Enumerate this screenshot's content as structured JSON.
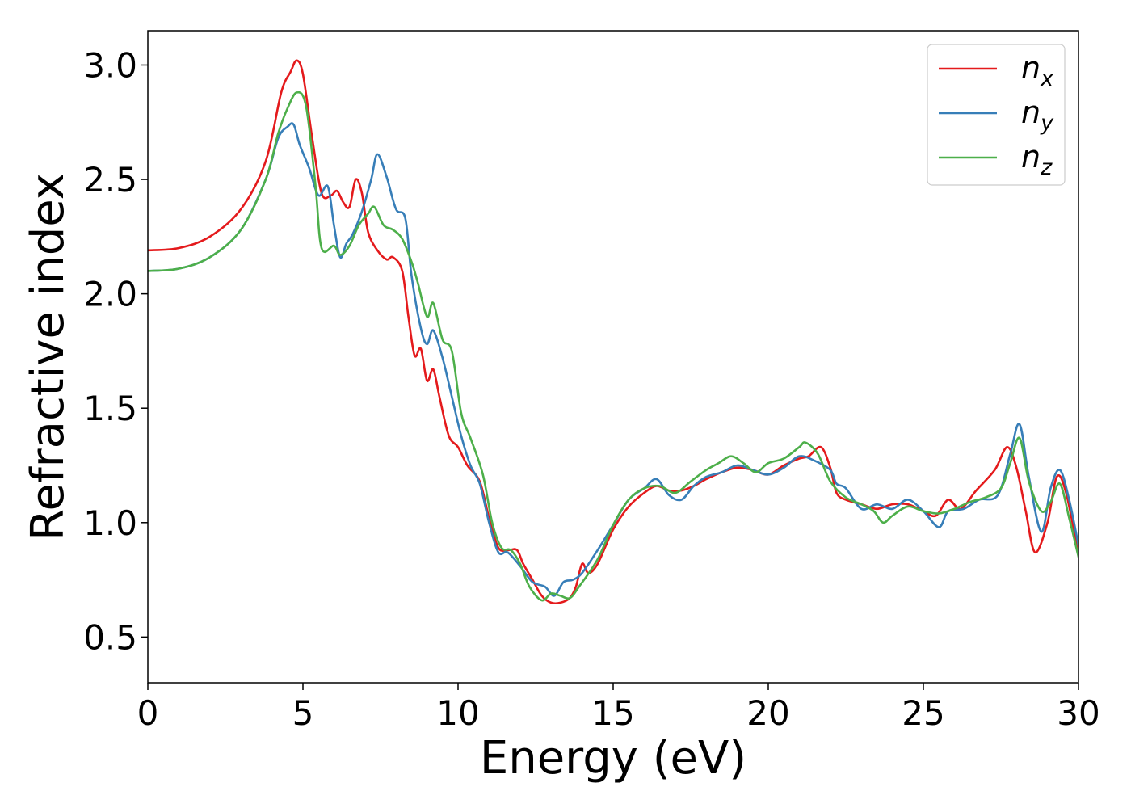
{
  "chart_data": {
    "type": "line",
    "title": "",
    "xlabel": "Energy (eV)",
    "ylabel": "Refractive index",
    "xlim": [
      0,
      30
    ],
    "ylim": [
      0.3,
      3.15
    ],
    "xticks": [
      0,
      5,
      10,
      15,
      20,
      25,
      30
    ],
    "yticks": [
      0.5,
      1.0,
      1.5,
      2.0,
      2.5,
      3.0
    ],
    "xtick_labels": [
      "0",
      "5",
      "10",
      "15",
      "20",
      "25",
      "30"
    ],
    "ytick_labels": [
      "0.5",
      "1.0",
      "1.5",
      "2.0",
      "2.5",
      "3.0"
    ],
    "grid": false,
    "legend_position": "top-right",
    "series": [
      {
        "name": "n",
        "subscript": "x",
        "color": "#e41a1c",
        "points": [
          [
            0,
            2.19
          ],
          [
            1,
            2.2
          ],
          [
            2,
            2.25
          ],
          [
            3,
            2.37
          ],
          [
            3.8,
            2.58
          ],
          [
            4.3,
            2.88
          ],
          [
            4.6,
            2.97
          ],
          [
            4.8,
            3.02
          ],
          [
            5.0,
            2.96
          ],
          [
            5.3,
            2.68
          ],
          [
            5.6,
            2.44
          ],
          [
            5.9,
            2.43
          ],
          [
            6.1,
            2.45
          ],
          [
            6.3,
            2.4
          ],
          [
            6.5,
            2.38
          ],
          [
            6.7,
            2.5
          ],
          [
            6.9,
            2.44
          ],
          [
            7.1,
            2.27
          ],
          [
            7.4,
            2.19
          ],
          [
            7.7,
            2.15
          ],
          [
            7.9,
            2.16
          ],
          [
            8.2,
            2.1
          ],
          [
            8.4,
            1.9
          ],
          [
            8.6,
            1.73
          ],
          [
            8.8,
            1.76
          ],
          [
            9.0,
            1.62
          ],
          [
            9.2,
            1.67
          ],
          [
            9.4,
            1.55
          ],
          [
            9.7,
            1.38
          ],
          [
            10.0,
            1.33
          ],
          [
            10.3,
            1.25
          ],
          [
            10.7,
            1.18
          ],
          [
            11.0,
            1.02
          ],
          [
            11.3,
            0.89
          ],
          [
            11.6,
            0.88
          ],
          [
            11.9,
            0.88
          ],
          [
            12.1,
            0.82
          ],
          [
            12.4,
            0.75
          ],
          [
            12.7,
            0.68
          ],
          [
            13.0,
            0.65
          ],
          [
            13.3,
            0.65
          ],
          [
            13.6,
            0.67
          ],
          [
            13.8,
            0.72
          ],
          [
            14.0,
            0.82
          ],
          [
            14.2,
            0.78
          ],
          [
            14.5,
            0.82
          ],
          [
            15.0,
            0.97
          ],
          [
            15.5,
            1.07
          ],
          [
            16.0,
            1.13
          ],
          [
            16.4,
            1.16
          ],
          [
            16.8,
            1.14
          ],
          [
            17.2,
            1.14
          ],
          [
            17.6,
            1.16
          ],
          [
            18.0,
            1.19
          ],
          [
            18.5,
            1.22
          ],
          [
            19.0,
            1.24
          ],
          [
            19.5,
            1.23
          ],
          [
            20.0,
            1.21
          ],
          [
            20.5,
            1.25
          ],
          [
            21.0,
            1.28
          ],
          [
            21.3,
            1.29
          ],
          [
            21.7,
            1.33
          ],
          [
            22.0,
            1.24
          ],
          [
            22.2,
            1.13
          ],
          [
            22.5,
            1.1
          ],
          [
            23.0,
            1.08
          ],
          [
            23.5,
            1.06
          ],
          [
            24.0,
            1.08
          ],
          [
            24.5,
            1.08
          ],
          [
            25.0,
            1.05
          ],
          [
            25.4,
            1.03
          ],
          [
            25.8,
            1.1
          ],
          [
            26.2,
            1.06
          ],
          [
            26.7,
            1.14
          ],
          [
            27.3,
            1.23
          ],
          [
            27.7,
            1.33
          ],
          [
            28.0,
            1.24
          ],
          [
            28.3,
            1.05
          ],
          [
            28.6,
            0.87
          ],
          [
            29.0,
            1.0
          ],
          [
            29.3,
            1.2
          ],
          [
            29.6,
            1.13
          ],
          [
            30.0,
            0.86
          ]
        ]
      },
      {
        "name": "n",
        "subscript": "y",
        "color": "#377eb8",
        "points": [
          [
            0,
            2.1
          ],
          [
            1,
            2.11
          ],
          [
            2,
            2.16
          ],
          [
            3,
            2.28
          ],
          [
            3.8,
            2.5
          ],
          [
            4.2,
            2.68
          ],
          [
            4.5,
            2.73
          ],
          [
            4.7,
            2.74
          ],
          [
            4.9,
            2.65
          ],
          [
            5.2,
            2.55
          ],
          [
            5.5,
            2.43
          ],
          [
            5.8,
            2.47
          ],
          [
            6.0,
            2.3
          ],
          [
            6.2,
            2.16
          ],
          [
            6.4,
            2.22
          ],
          [
            6.6,
            2.26
          ],
          [
            6.9,
            2.36
          ],
          [
            7.2,
            2.5
          ],
          [
            7.4,
            2.61
          ],
          [
            7.7,
            2.51
          ],
          [
            8.0,
            2.37
          ],
          [
            8.3,
            2.33
          ],
          [
            8.5,
            2.08
          ],
          [
            8.8,
            1.85
          ],
          [
            9.0,
            1.78
          ],
          [
            9.2,
            1.84
          ],
          [
            9.5,
            1.72
          ],
          [
            9.8,
            1.55
          ],
          [
            10.1,
            1.38
          ],
          [
            10.4,
            1.25
          ],
          [
            10.7,
            1.17
          ],
          [
            11.0,
            1.0
          ],
          [
            11.3,
            0.87
          ],
          [
            11.6,
            0.87
          ],
          [
            12.0,
            0.81
          ],
          [
            12.4,
            0.74
          ],
          [
            12.8,
            0.72
          ],
          [
            13.1,
            0.68
          ],
          [
            13.4,
            0.74
          ],
          [
            13.7,
            0.75
          ],
          [
            14.0,
            0.78
          ],
          [
            14.5,
            0.88
          ],
          [
            15.0,
            0.99
          ],
          [
            15.5,
            1.1
          ],
          [
            16.0,
            1.15
          ],
          [
            16.4,
            1.19
          ],
          [
            16.8,
            1.12
          ],
          [
            17.2,
            1.1
          ],
          [
            17.6,
            1.16
          ],
          [
            18.0,
            1.2
          ],
          [
            18.5,
            1.22
          ],
          [
            19.0,
            1.25
          ],
          [
            19.5,
            1.23
          ],
          [
            20.0,
            1.21
          ],
          [
            20.5,
            1.24
          ],
          [
            21.0,
            1.29
          ],
          [
            21.5,
            1.27
          ],
          [
            22.0,
            1.23
          ],
          [
            22.2,
            1.17
          ],
          [
            22.5,
            1.15
          ],
          [
            23.0,
            1.06
          ],
          [
            23.5,
            1.08
          ],
          [
            24.0,
            1.06
          ],
          [
            24.5,
            1.1
          ],
          [
            25.0,
            1.05
          ],
          [
            25.5,
            0.98
          ],
          [
            25.8,
            1.05
          ],
          [
            26.3,
            1.06
          ],
          [
            26.8,
            1.1
          ],
          [
            27.4,
            1.12
          ],
          [
            27.8,
            1.3
          ],
          [
            28.1,
            1.43
          ],
          [
            28.4,
            1.2
          ],
          [
            28.8,
            0.96
          ],
          [
            29.1,
            1.15
          ],
          [
            29.4,
            1.23
          ],
          [
            29.7,
            1.1
          ],
          [
            30.0,
            0.9
          ]
        ]
      },
      {
        "name": "n",
        "subscript": "z",
        "color": "#4daf4a",
        "points": [
          [
            0,
            2.1
          ],
          [
            1,
            2.11
          ],
          [
            2,
            2.16
          ],
          [
            3,
            2.28
          ],
          [
            3.8,
            2.5
          ],
          [
            4.2,
            2.7
          ],
          [
            4.5,
            2.81
          ],
          [
            4.8,
            2.88
          ],
          [
            5.1,
            2.82
          ],
          [
            5.4,
            2.48
          ],
          [
            5.6,
            2.2
          ],
          [
            6.0,
            2.21
          ],
          [
            6.2,
            2.17
          ],
          [
            6.5,
            2.21
          ],
          [
            6.8,
            2.3
          ],
          [
            7.1,
            2.35
          ],
          [
            7.3,
            2.38
          ],
          [
            7.6,
            2.3
          ],
          [
            7.9,
            2.28
          ],
          [
            8.2,
            2.24
          ],
          [
            8.5,
            2.14
          ],
          [
            8.7,
            2.05
          ],
          [
            9.0,
            1.9
          ],
          [
            9.2,
            1.96
          ],
          [
            9.5,
            1.8
          ],
          [
            9.8,
            1.75
          ],
          [
            10.1,
            1.48
          ],
          [
            10.4,
            1.37
          ],
          [
            10.8,
            1.21
          ],
          [
            11.1,
            1.0
          ],
          [
            11.4,
            0.89
          ],
          [
            11.7,
            0.88
          ],
          [
            12.0,
            0.82
          ],
          [
            12.3,
            0.72
          ],
          [
            12.7,
            0.66
          ],
          [
            13.0,
            0.69
          ],
          [
            13.3,
            0.68
          ],
          [
            13.6,
            0.67
          ],
          [
            13.9,
            0.72
          ],
          [
            14.5,
            0.84
          ],
          [
            15.0,
            0.99
          ],
          [
            15.5,
            1.1
          ],
          [
            16.0,
            1.15
          ],
          [
            16.5,
            1.16
          ],
          [
            17.0,
            1.13
          ],
          [
            17.5,
            1.18
          ],
          [
            18.0,
            1.23
          ],
          [
            18.4,
            1.26
          ],
          [
            18.8,
            1.29
          ],
          [
            19.2,
            1.26
          ],
          [
            19.6,
            1.22
          ],
          [
            20.0,
            1.26
          ],
          [
            20.5,
            1.28
          ],
          [
            21.0,
            1.33
          ],
          [
            21.2,
            1.35
          ],
          [
            21.6,
            1.3
          ],
          [
            22.0,
            1.18
          ],
          [
            22.5,
            1.11
          ],
          [
            23.0,
            1.08
          ],
          [
            23.4,
            1.05
          ],
          [
            23.7,
            1.0
          ],
          [
            24.0,
            1.03
          ],
          [
            24.5,
            1.07
          ],
          [
            25.0,
            1.05
          ],
          [
            25.5,
            1.04
          ],
          [
            26.0,
            1.06
          ],
          [
            26.5,
            1.09
          ],
          [
            27.0,
            1.11
          ],
          [
            27.5,
            1.15
          ],
          [
            27.8,
            1.26
          ],
          [
            28.1,
            1.37
          ],
          [
            28.4,
            1.18
          ],
          [
            28.8,
            1.05
          ],
          [
            29.1,
            1.09
          ],
          [
            29.4,
            1.17
          ],
          [
            29.7,
            1.02
          ],
          [
            30.0,
            0.85
          ]
        ]
      }
    ]
  }
}
